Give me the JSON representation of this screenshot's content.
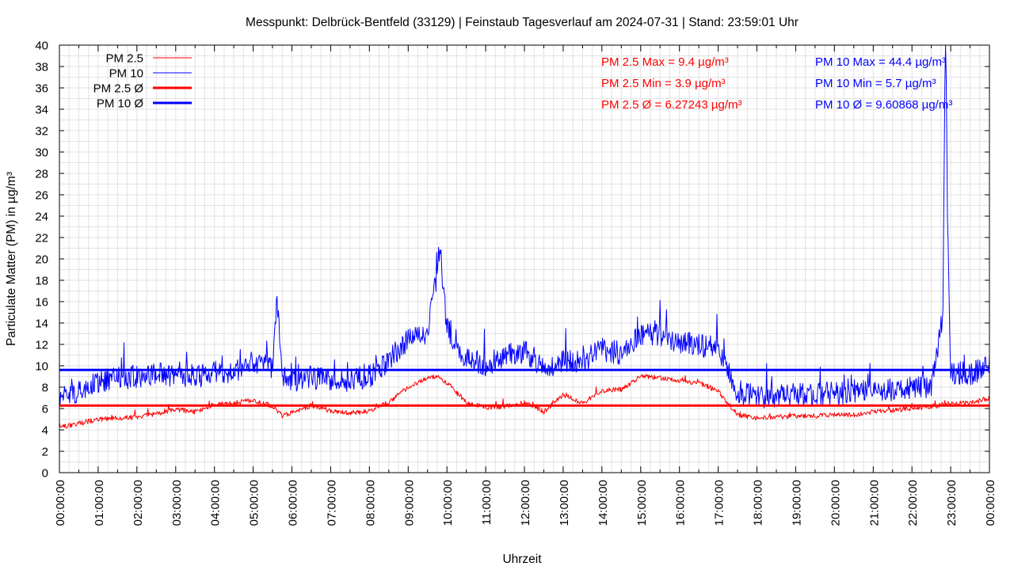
{
  "chart_data": {
    "type": "line",
    "title": "Messpunkt: Delbrück-Bentfeld (33129) | Feinstaub Tagesverlauf am 2024-07-31 | Stand: 23:59:01 Uhr",
    "xlabel": "Uhrzeit",
    "ylabel": "Particulate Matter (PM) in µg/m³",
    "ylim": [
      0,
      40
    ],
    "yticks": [
      0,
      2,
      4,
      6,
      8,
      10,
      12,
      14,
      16,
      18,
      20,
      22,
      24,
      26,
      28,
      30,
      32,
      34,
      36,
      38,
      40
    ],
    "xlim": [
      "00:00:00",
      "24:00:00"
    ],
    "x_tick_labels": [
      "00:00:00",
      "01:00:00",
      "02:00:00",
      "03:00:00",
      "04:00:00",
      "05:00:00",
      "06:00:00",
      "07:00:00",
      "08:00:00",
      "09:00:00",
      "10:00:00",
      "11:00:00",
      "12:00:00",
      "13:00:00",
      "14:00:00",
      "15:00:00",
      "16:00:00",
      "17:00:00",
      "18:00:00",
      "19:00:00",
      "20:00:00",
      "21:00:00",
      "22:00:00",
      "23:00:00",
      "00:00:00"
    ],
    "grid": true,
    "legend_position": "top-left",
    "series": [
      {
        "name": "PM 2.5",
        "color": "#ff0000",
        "x": [
          "00:00",
          "00:30",
          "01:00",
          "01:30",
          "02:00",
          "02:30",
          "03:00",
          "03:30",
          "04:00",
          "04:30",
          "05:00",
          "05:30",
          "05:45",
          "06:00",
          "06:30",
          "07:00",
          "07:30",
          "08:00",
          "08:30",
          "09:00",
          "09:30",
          "09:45",
          "10:00",
          "10:30",
          "11:00",
          "11:30",
          "12:00",
          "12:30",
          "13:00",
          "13:30",
          "14:00",
          "14:30",
          "15:00",
          "15:30",
          "16:00",
          "16:30",
          "17:00",
          "17:30",
          "18:00",
          "18:30",
          "19:00",
          "19:30",
          "20:00",
          "20:30",
          "21:00",
          "21:30",
          "22:00",
          "22:30",
          "23:00",
          "23:30",
          "24:00"
        ],
        "values": [
          4.2,
          4.6,
          5.0,
          5.1,
          5.2,
          5.5,
          5.9,
          5.7,
          6.4,
          6.5,
          6.8,
          6.2,
          5.3,
          5.6,
          6.3,
          5.8,
          5.6,
          5.7,
          6.6,
          8.0,
          8.8,
          9.0,
          8.4,
          6.6,
          6.1,
          6.2,
          6.6,
          5.7,
          7.3,
          6.5,
          7.7,
          7.8,
          9.0,
          8.9,
          8.6,
          8.4,
          7.6,
          5.4,
          5.1,
          5.2,
          5.3,
          5.3,
          5.4,
          5.4,
          5.7,
          5.8,
          6.0,
          6.2,
          6.5,
          6.5,
          7.0
        ]
      },
      {
        "name": "PM 10",
        "color": "#0000ff",
        "x": [
          "00:00",
          "00:30",
          "01:00",
          "01:30",
          "02:00",
          "02:30",
          "03:00",
          "03:30",
          "04:00",
          "04:30",
          "05:00",
          "05:30",
          "05:37",
          "05:45",
          "06:00",
          "06:30",
          "07:00",
          "07:30",
          "08:00",
          "08:30",
          "09:00",
          "09:30",
          "09:50",
          "10:00",
          "10:30",
          "11:00",
          "11:30",
          "12:00",
          "12:30",
          "13:00",
          "13:30",
          "14:00",
          "14:30",
          "15:00",
          "15:30",
          "16:00",
          "16:30",
          "17:00",
          "17:30",
          "18:00",
          "18:30",
          "19:00",
          "19:30",
          "20:00",
          "20:30",
          "21:00",
          "21:30",
          "22:00",
          "22:30",
          "22:48",
          "22:52",
          "22:55",
          "23:00",
          "23:30",
          "24:00"
        ],
        "values": [
          7.2,
          7.6,
          8.5,
          8.8,
          9.0,
          9.2,
          9.1,
          8.9,
          9.4,
          9.5,
          10.3,
          9.8,
          16.5,
          9.2,
          8.6,
          8.9,
          8.6,
          8.7,
          9.0,
          10.5,
          12.5,
          13.2,
          20.5,
          13.5,
          10.6,
          10.1,
          11.0,
          11.2,
          9.6,
          10.5,
          10.4,
          11.5,
          11.2,
          13.0,
          12.8,
          12.3,
          12.0,
          11.4,
          7.6,
          7.1,
          7.2,
          7.3,
          7.4,
          7.4,
          7.4,
          7.7,
          7.8,
          7.9,
          8.0,
          15.0,
          44.4,
          23.9,
          9.4,
          9.2,
          10.0
        ]
      },
      {
        "name": "PM 2.5 Ø",
        "color": "#ff0000",
        "constant": 6.27243
      },
      {
        "name": "PM 10 Ø",
        "color": "#0000ff",
        "constant": 9.60868
      }
    ],
    "annotations": [
      {
        "text": "PM 2.5 Max = 9.4 µg/m³",
        "color": "#ff0000"
      },
      {
        "text": "PM 2.5 Min = 3.9 µg/m³",
        "color": "#ff0000"
      },
      {
        "text": "PM 2.5 Ø = 6.27243 µg/m³",
        "color": "#ff0000"
      },
      {
        "text": "PM 10 Max = 44.4 µg/m³",
        "color": "#0000ff"
      },
      {
        "text": "PM 10 Min = 5.7 µg/m³",
        "color": "#0000ff"
      },
      {
        "text": "PM 10 Ø = 9.60868 µg/m³",
        "color": "#0000ff"
      }
    ]
  }
}
